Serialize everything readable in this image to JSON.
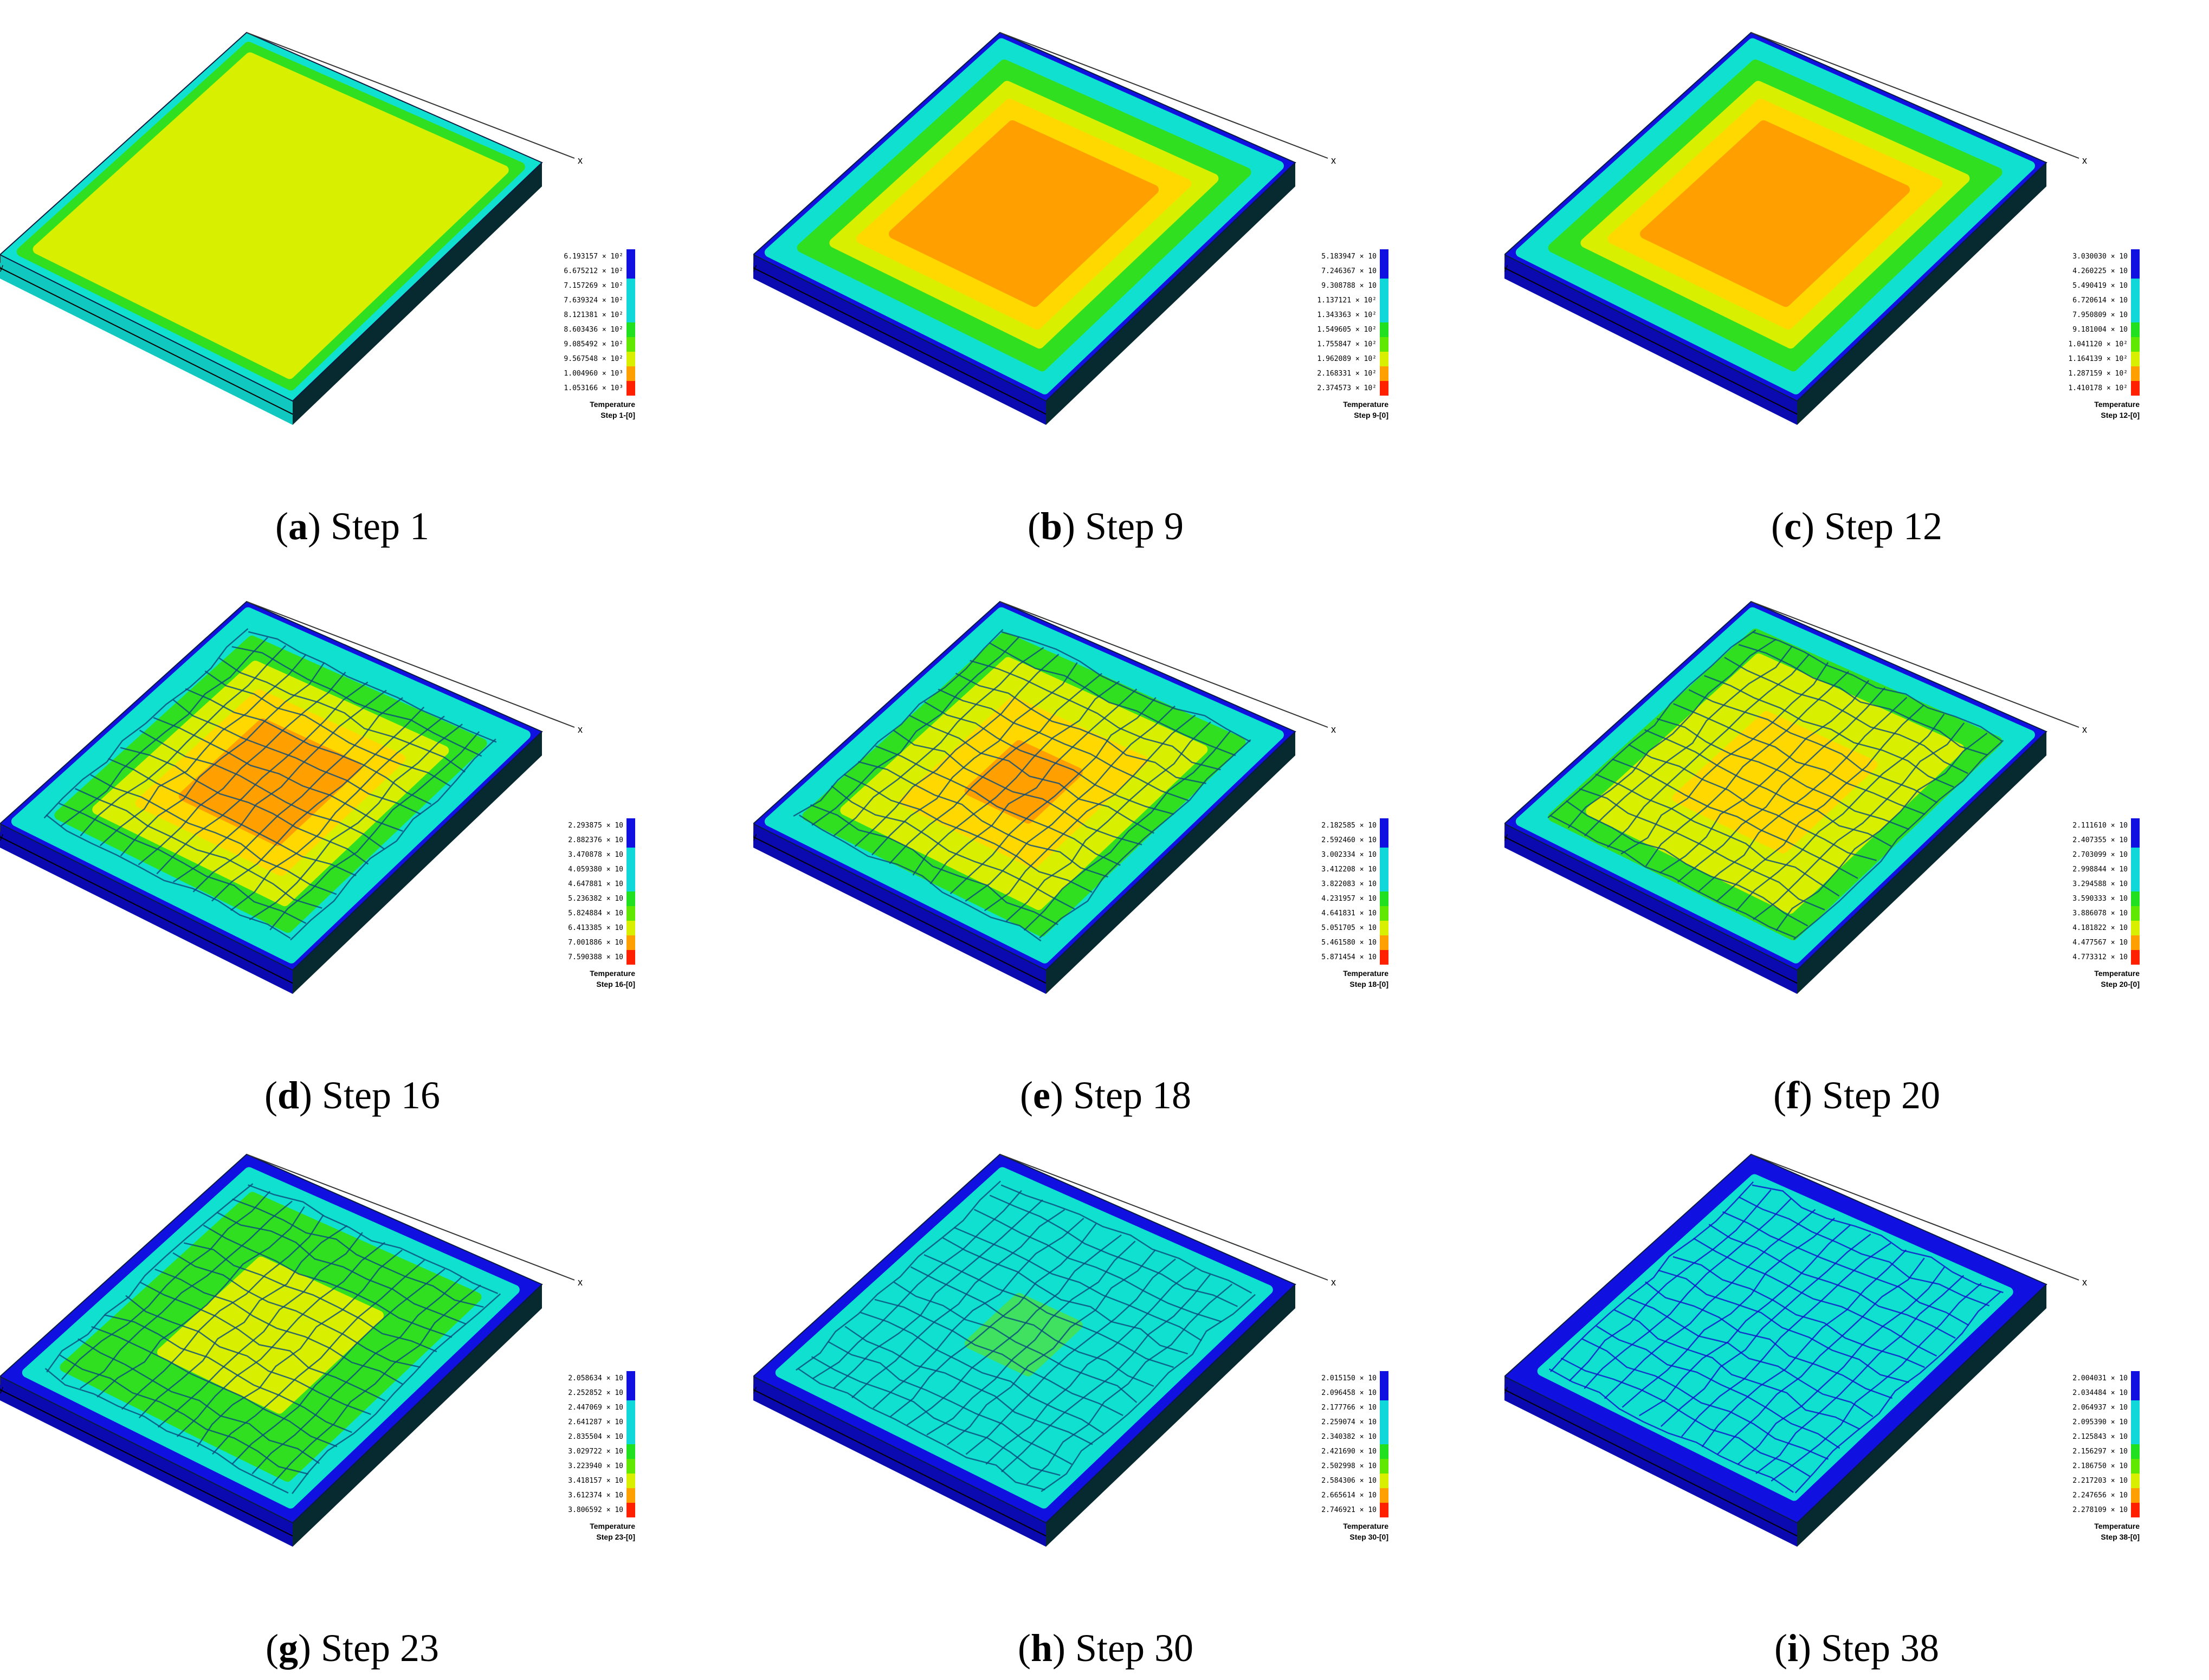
{
  "colors": {
    "blue": "#1010e0",
    "cyan": "#10e0d0",
    "green": "#30e020",
    "yellowgreen": "#d8f000",
    "yellow": "#ffd800",
    "orange": "#ffa000",
    "red": "#ff2000"
  },
  "legend_colors": [
    "#1010e0",
    "#1010e0",
    "#10d8d8",
    "#10d8d8",
    "#10d8d8",
    "#20e020",
    "#60e800",
    "#d8f000",
    "#ffa000",
    "#ff2000"
  ],
  "panels": [
    {
      "letter": "a",
      "caption": "Step 1",
      "step_label": "Step 1-[0]",
      "temperature_label": "Temperature",
      "fill": "uniform",
      "legend": [
        "6.193157 × 10²",
        "6.675212 × 10²",
        "7.157269 × 10²",
        "7.639324 × 10²",
        "8.121381 × 10²",
        "8.603436 × 10²",
        "9.085492 × 10²",
        "9.567548 × 10²",
        "1.004960 × 10³",
        "1.053166 × 10³"
      ]
    },
    {
      "letter": "b",
      "caption": "Step 9",
      "step_label": "Step 9-[0]",
      "temperature_label": "Temperature",
      "fill": "hot",
      "legend": [
        "5.183947 × 10",
        "7.246367 × 10",
        "9.308788 × 10",
        "1.137121 × 10²",
        "1.343363 × 10²",
        "1.549605 × 10²",
        "1.755847 × 10²",
        "1.962089 × 10²",
        "2.168331 × 10²",
        "2.374573 × 10²"
      ]
    },
    {
      "letter": "c",
      "caption": "Step 12",
      "step_label": "Step 12-[0]",
      "temperature_label": "Temperature",
      "fill": "hot",
      "legend": [
        "3.030030 × 10",
        "4.260225 × 10",
        "5.490419 × 10",
        "6.720614 × 10",
        "7.950809 × 10",
        "9.181004 × 10",
        "1.041120 × 10²",
        "1.164139 × 10²",
        "1.287159 × 10²",
        "1.410178 × 10²"
      ]
    },
    {
      "letter": "d",
      "caption": "Step 16",
      "step_label": "Step 16-[0]",
      "temperature_label": "Temperature",
      "fill": "cracked-hot",
      "legend": [
        "2.293875 × 10",
        "2.882376 × 10",
        "3.470878 × 10",
        "4.059380 × 10",
        "4.647881 × 10",
        "5.236382 × 10",
        "5.824884 × 10",
        "6.413385 × 10",
        "7.001886 × 10",
        "7.590388 × 10"
      ]
    },
    {
      "letter": "e",
      "caption": "Step 18",
      "step_label": "Step 18-[0]",
      "temperature_label": "Temperature",
      "fill": "cracked-warm",
      "legend": [
        "2.182585 × 10",
        "2.592460 × 10",
        "3.002334 × 10",
        "3.412208 × 10",
        "3.822083 × 10",
        "4.231957 × 10",
        "4.641831 × 10",
        "5.051705 × 10",
        "5.461580 × 10",
        "5.871454 × 10"
      ]
    },
    {
      "letter": "f",
      "caption": "Step 20",
      "step_label": "Step 20-[0]",
      "temperature_label": "Temperature",
      "fill": "cracked-yellow",
      "legend": [
        "2.111610 × 10",
        "2.407355 × 10",
        "2.703099 × 10",
        "2.998844 × 10",
        "3.294588 × 10",
        "3.590333 × 10",
        "3.886078 × 10",
        "4.181822 × 10",
        "4.477567 × 10",
        "4.773312 × 10"
      ]
    },
    {
      "letter": "g",
      "caption": "Step 23",
      "step_label": "Step 23-[0]",
      "temperature_label": "Temperature",
      "fill": "cracked-green",
      "legend": [
        "2.058634 × 10",
        "2.252852 × 10",
        "2.447069 × 10",
        "2.641287 × 10",
        "2.835504 × 10",
        "3.029722 × 10",
        "3.223940 × 10",
        "3.418157 × 10",
        "3.612374 × 10",
        "3.806592 × 10"
      ]
    },
    {
      "letter": "h",
      "caption": "Step 30",
      "step_label": "Step 30-[0]",
      "temperature_label": "Temperature",
      "fill": "cracked-cyan",
      "legend": [
        "2.015150 × 10",
        "2.096458 × 10",
        "2.177766 × 10",
        "2.259074 × 10",
        "2.340382 × 10",
        "2.421690 × 10",
        "2.502998 × 10",
        "2.584306 × 10",
        "2.665614 × 10",
        "2.746921 × 10"
      ]
    },
    {
      "letter": "i",
      "caption": "Step 38",
      "step_label": "Step 38-[0]",
      "temperature_label": "Temperature",
      "fill": "cracked-cyan-blue",
      "legend": [
        "2.004031 × 10",
        "2.034484 × 10",
        "2.064937 × 10",
        "2.095390 × 10",
        "2.125843 × 10",
        "2.156297 × 10",
        "2.186750 × 10",
        "2.217203 × 10",
        "2.247656 × 10",
        "2.278109 × 10"
      ]
    }
  ]
}
